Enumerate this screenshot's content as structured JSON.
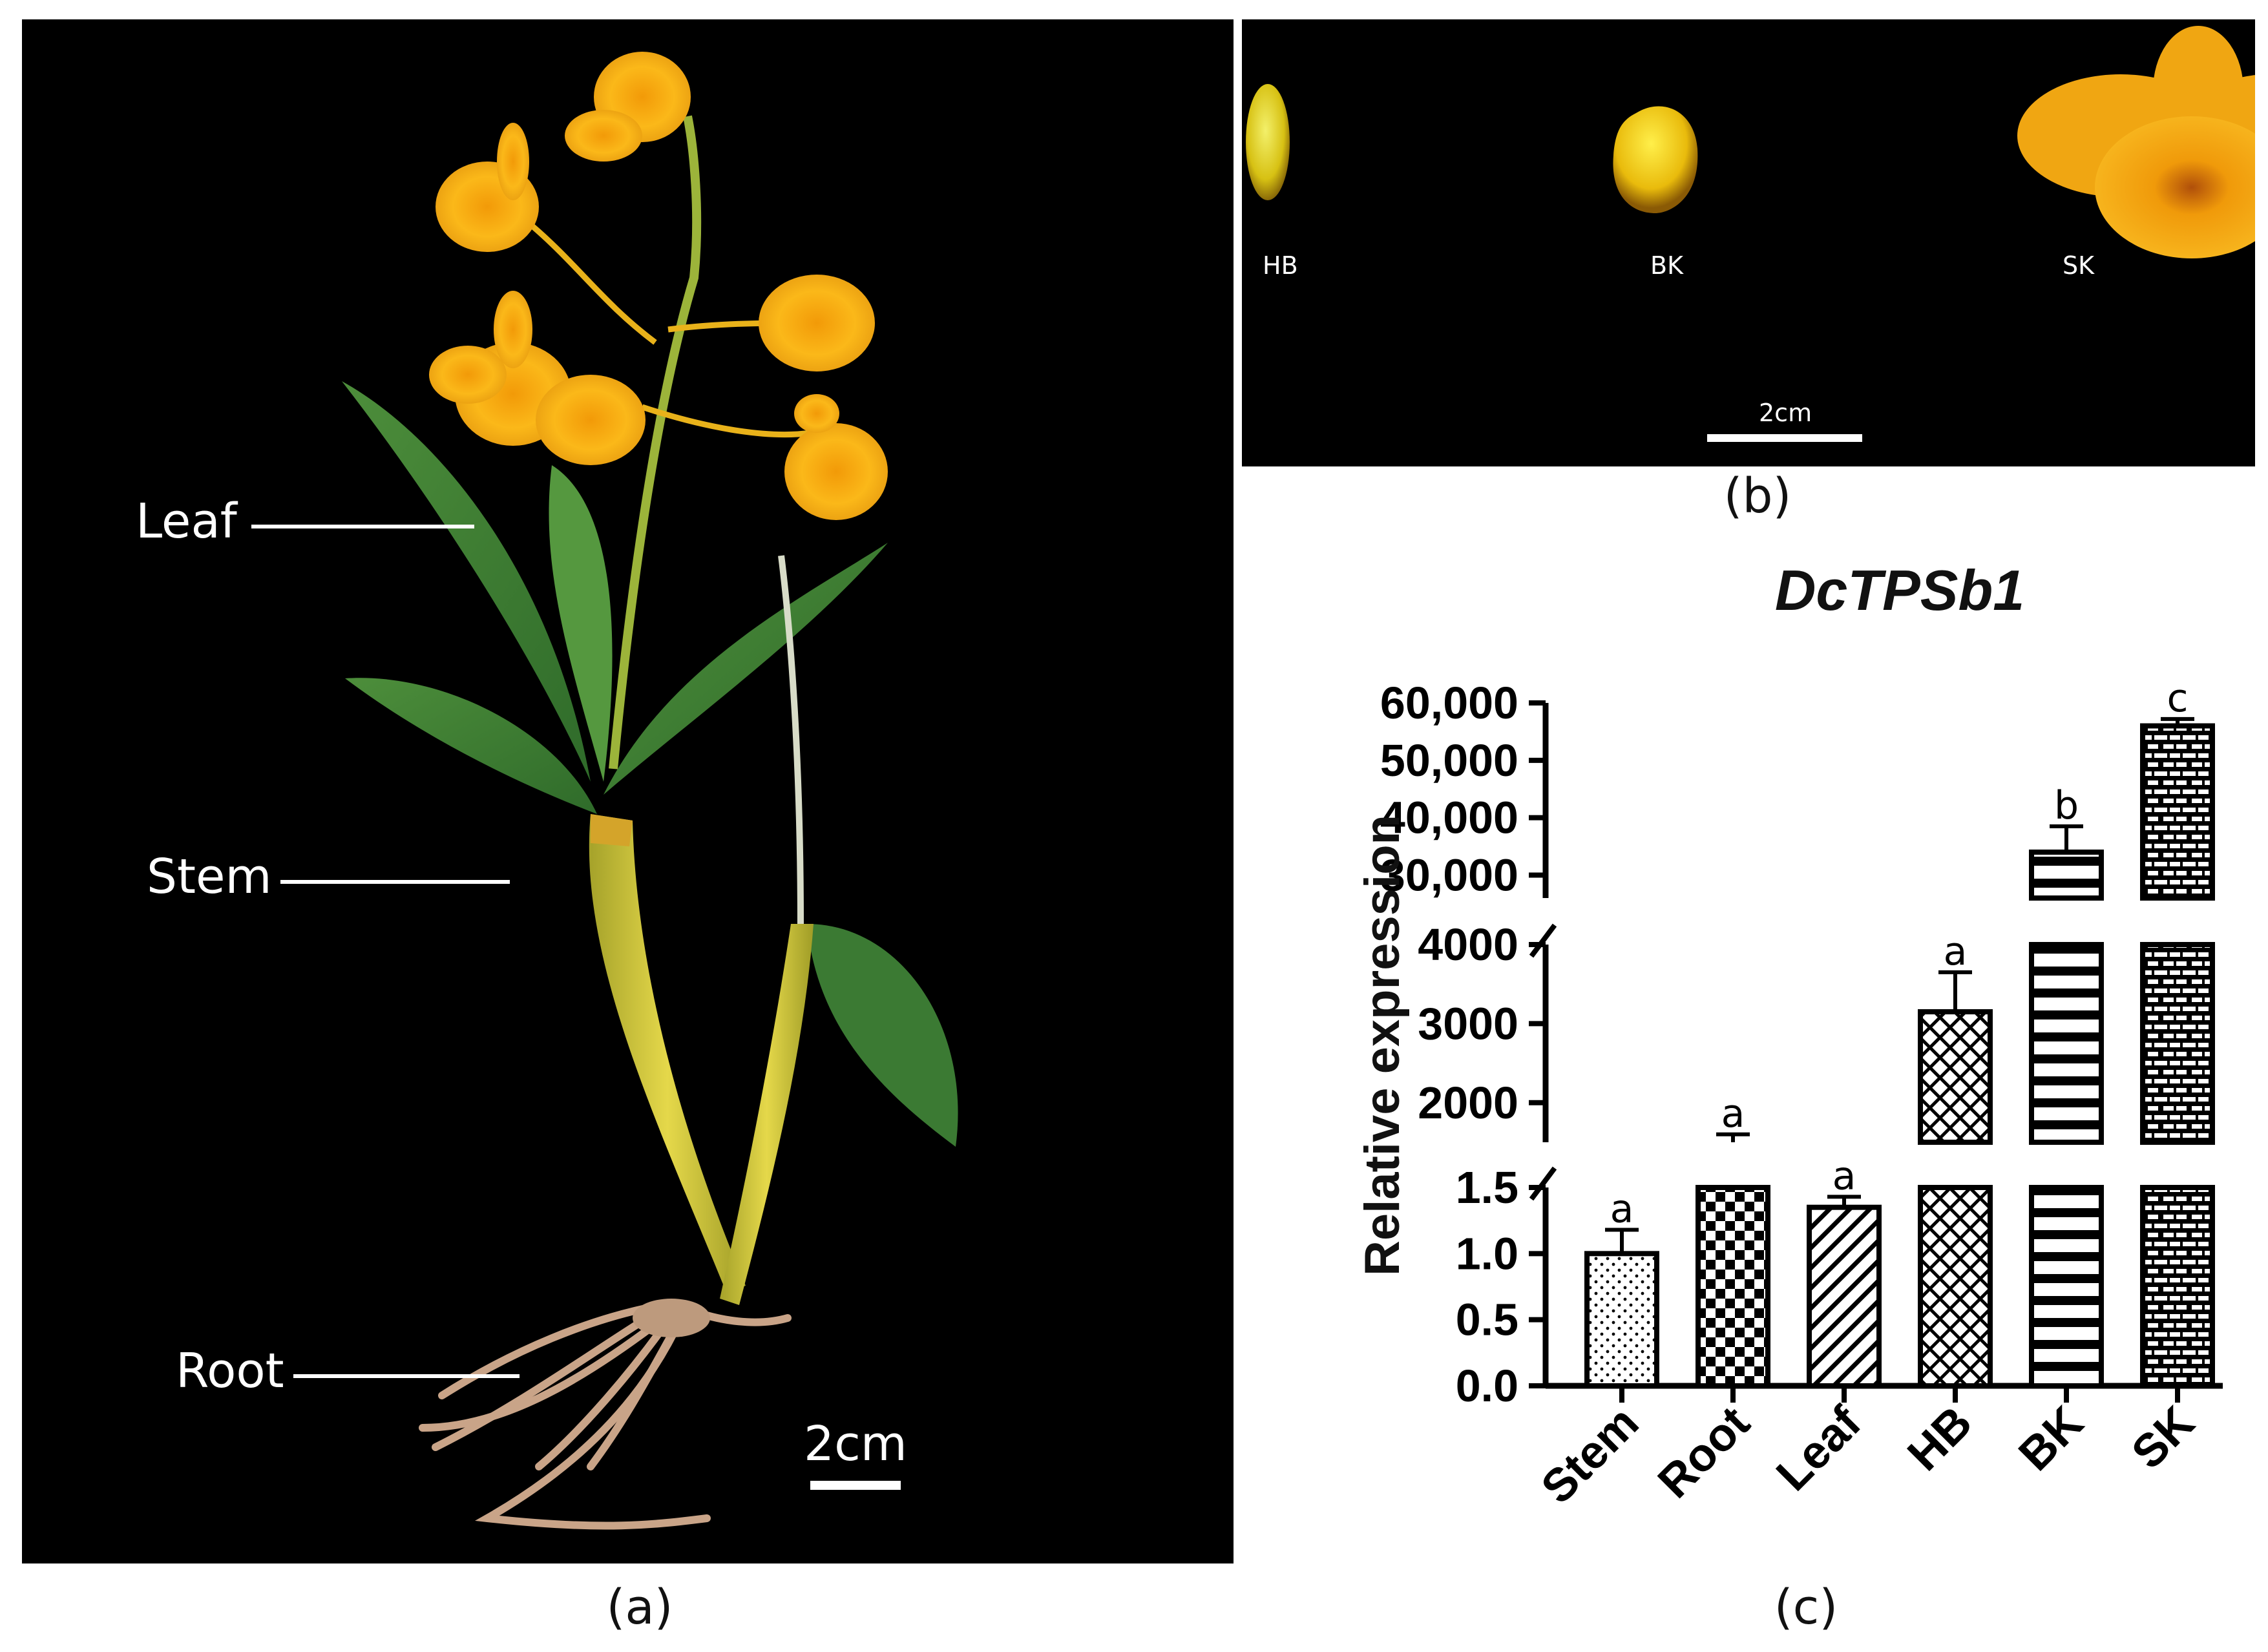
{
  "panel_a": {
    "caption": "(a)",
    "labels": {
      "leaf": "Leaf",
      "stem": "Stem",
      "root": "Root"
    },
    "scale": "2cm"
  },
  "panel_b": {
    "caption": "(b)",
    "stages": [
      "HB",
      "BK",
      "SK"
    ],
    "scale": "2cm"
  },
  "panel_c": {
    "caption": "(c)"
  },
  "chart_data": {
    "type": "bar",
    "title": "DcTPSb1",
    "ylabel": "Relative expression",
    "xlabel": "",
    "categories": [
      "Stem",
      "Root",
      "Leaf",
      "HB",
      "BK",
      "SK"
    ],
    "values": [
      1.0,
      1500,
      1.35,
      3150,
      34000,
      56000
    ],
    "error_plus": [
      0.18,
      100,
      0.08,
      500,
      4500,
      1200
    ],
    "significance": [
      "a",
      "a",
      "a",
      "a",
      "b",
      "c"
    ],
    "y_axis_segments": [
      {
        "range": [
          0,
          1.5
        ],
        "ticks": [
          "0.0",
          "0.5",
          "1.0",
          "1.5"
        ]
      },
      {
        "range": [
          1500,
          4000
        ],
        "ticks": [
          "2000",
          "3000",
          "4000"
        ]
      },
      {
        "range": [
          26000,
          60000
        ],
        "ticks": [
          "30,000",
          "40,000",
          "50,000",
          "60,000"
        ]
      }
    ],
    "bar_patterns": [
      "dots",
      "checker",
      "diagonal",
      "crosshatch",
      "horizontal-stripes",
      "brick"
    ]
  }
}
